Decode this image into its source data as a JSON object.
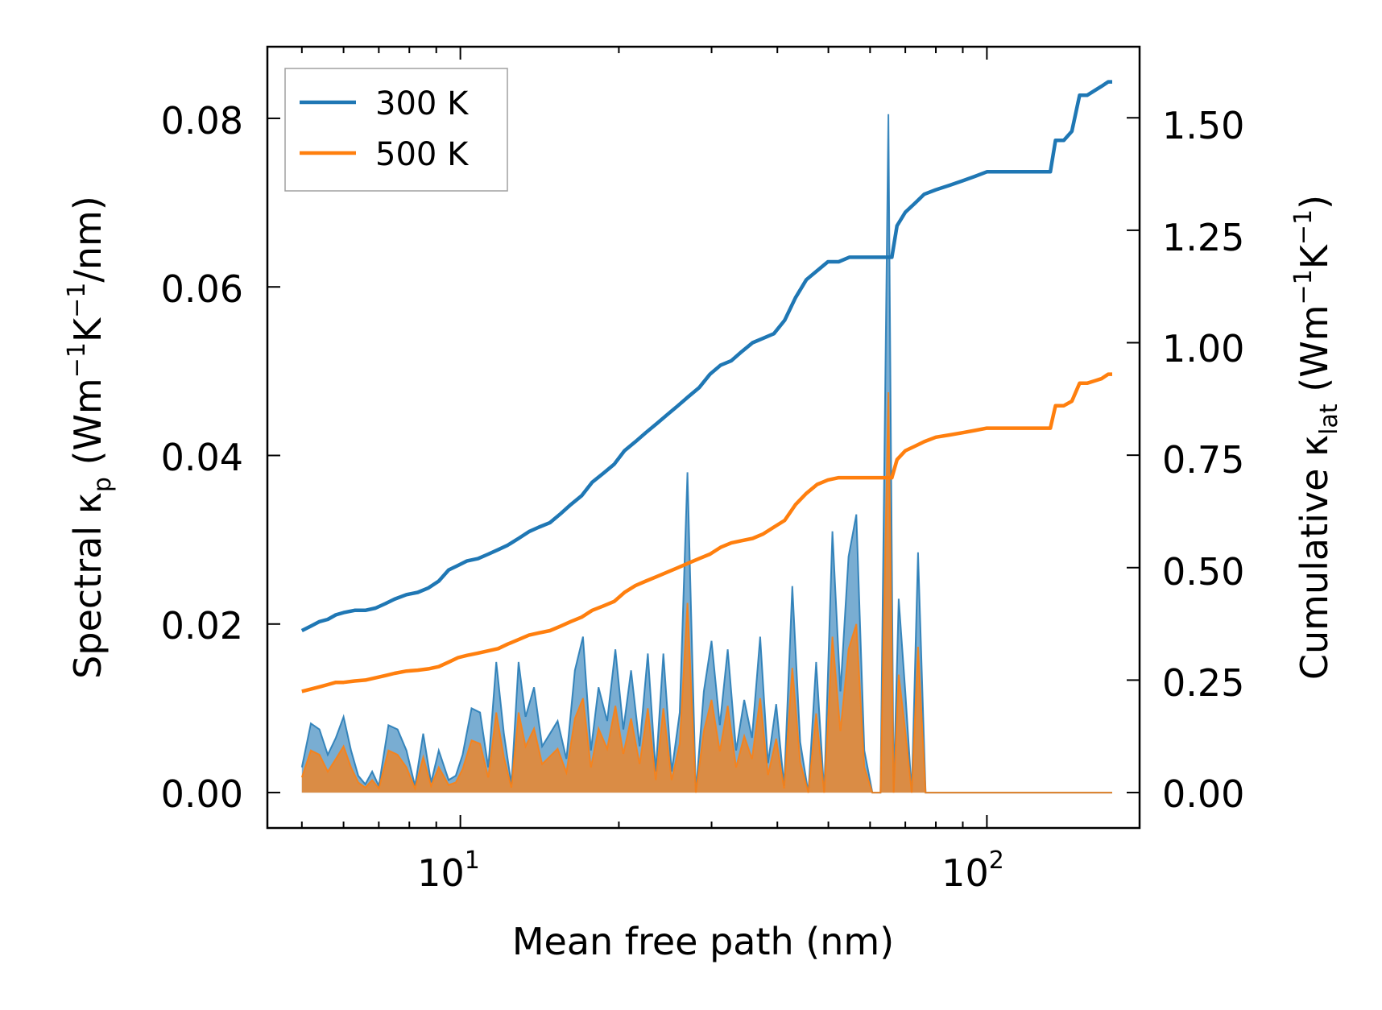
{
  "chart_data": {
    "type": "line",
    "title": "",
    "xlabel": "Mean free path (nm)",
    "xscale": "log",
    "xlim": [
      4.3,
      195
    ],
    "x_ticks": [
      {
        "value": 10,
        "base": "10",
        "exp": "1"
      },
      {
        "value": 100,
        "base": "10",
        "exp": "2"
      }
    ],
    "y_left": {
      "label_main": "Spectral κ",
      "label_sub": "p",
      "label_open": " (Wm",
      "label_sup1": "−1",
      "label_mid": "K",
      "label_sup2": "−1",
      "label_close": "/nm)",
      "ylim": [
        -0.0042,
        0.0885
      ],
      "ticks": [
        "0.00",
        "0.02",
        "0.04",
        "0.06",
        "0.08"
      ],
      "tick_values": [
        0,
        0.02,
        0.04,
        0.06,
        0.08
      ]
    },
    "y_right": {
      "label_main": "Cumulative κ",
      "label_sub": "lat",
      "label_open": " (Wm",
      "label_sup1": "−1",
      "label_mid": "K",
      "label_sup2": "−1",
      "label_close": ")",
      "ylim": [
        -0.0787,
        1.658
      ],
      "ticks": [
        "0.00",
        "0.25",
        "0.50",
        "0.75",
        "1.00",
        "1.25",
        "1.50"
      ],
      "tick_values": [
        0,
        0.25,
        0.5,
        0.75,
        1.0,
        1.25,
        1.5
      ]
    },
    "legend": {
      "placement": "top-left",
      "entries": [
        {
          "label": "300 K",
          "color": "#1f77b4"
        },
        {
          "label": "500 K",
          "color": "#ff7f0e"
        }
      ]
    },
    "series": [
      {
        "name": "300 K",
        "color": "#1f77b4",
        "fill_color": "#1f77b4",
        "spectral": {
          "x": [
            5.0,
            5.2,
            5.4,
            5.6,
            5.8,
            6.0,
            6.2,
            6.4,
            6.6,
            6.8,
            7.0,
            7.3,
            7.6,
            7.9,
            8.2,
            8.5,
            8.8,
            9.1,
            9.5,
            9.8,
            10.1,
            10.5,
            10.9,
            11.3,
            11.7,
            12.1,
            12.5,
            12.9,
            13.3,
            13.8,
            14.3,
            14.8,
            15.3,
            15.9,
            16.5,
            17.1,
            17.7,
            18.3,
            19.0,
            19.7,
            20.4,
            21.1,
            21.9,
            22.7,
            23.5,
            24.3,
            25.2,
            26.1,
            27.0,
            28.0,
            29.0,
            30.0,
            31.1,
            32.2,
            33.4,
            34.6,
            35.8,
            37.1,
            38.4,
            39.8,
            41.2,
            42.7,
            44.2,
            45.8,
            47.4,
            49.1,
            50.9,
            52.7,
            54.6,
            56.5,
            58.5,
            60.6,
            62.8,
            65.0,
            66.5,
            68.0,
            70.0,
            72.0,
            74.0,
            76.5,
            79.0,
            82.0,
            85.0,
            88.0,
            91.0,
            94.0,
            97.0,
            100.0,
            104.0,
            110.0,
            118.0,
            126.0,
            132.0,
            135.0,
            138.0,
            141.0,
            144.0,
            147.0,
            150.0,
            153.0,
            156.0,
            160.0,
            165.0,
            170.0,
            173.0
          ],
          "values": [
            0.003,
            0.0082,
            0.0075,
            0.0045,
            0.0065,
            0.009,
            0.005,
            0.002,
            0.001,
            0.0025,
            0.0008,
            0.008,
            0.0075,
            0.005,
            0.0008,
            0.007,
            0.0012,
            0.005,
            0.0015,
            0.002,
            0.0045,
            0.01,
            0.0095,
            0.003,
            0.0155,
            0.007,
            0.001,
            0.0155,
            0.009,
            0.0125,
            0.0055,
            0.007,
            0.0085,
            0.004,
            0.0145,
            0.0185,
            0.005,
            0.0125,
            0.0085,
            0.017,
            0.0075,
            0.0145,
            0.0055,
            0.0165,
            0.0025,
            0.0165,
            0.0025,
            0.0095,
            0.038,
            0.0,
            0.012,
            0.018,
            0.008,
            0.017,
            0.005,
            0.011,
            0.0065,
            0.0185,
            0.0035,
            0.0105,
            0.0008,
            0.0245,
            0.006,
            0.0,
            0.0155,
            0.0,
            0.031,
            0.012,
            0.028,
            0.033,
            0.005,
            0.0,
            0.0,
            0.0805,
            0.0,
            0.023,
            0.012,
            0.0,
            0.0285,
            0.0,
            0.0,
            0.0,
            0.0,
            0.0,
            0.0,
            0.0,
            0.0,
            0.0,
            0.0,
            0.0,
            0.0,
            0.0,
            0.0,
            0.0,
            0.0,
            0.0,
            0.0,
            0.0,
            0.0,
            0.0,
            0.0,
            0.0,
            0.0,
            0.0,
            0.0
          ]
        },
        "cumulative": {
          "x": [
            5.0,
            5.2,
            5.4,
            5.6,
            5.8,
            6.0,
            6.3,
            6.6,
            6.9,
            7.2,
            7.5,
            7.9,
            8.3,
            8.7,
            9.1,
            9.5,
            9.9,
            10.3,
            10.8,
            11.3,
            11.8,
            12.3,
            12.9,
            13.5,
            14.1,
            14.8,
            15.5,
            16.2,
            17.0,
            17.8,
            18.7,
            19.6,
            20.5,
            21.5,
            22.5,
            23.6,
            24.7,
            25.9,
            27.1,
            28.4,
            29.8,
            31.2,
            32.7,
            34.2,
            35.9,
            37.6,
            39.4,
            41.3,
            43.3,
            45.4,
            47.6,
            49.9,
            52.3,
            54.8,
            57.4,
            60.2,
            63.1,
            66.0,
            67.5,
            70.0,
            73.0,
            76.0,
            80.0,
            85.0,
            90.0,
            95.0,
            100.0,
            110.0,
            120.0,
            132.0,
            135.0,
            140.0,
            145.0,
            150.0,
            155.0,
            160.0,
            165.0,
            170.0,
            173.0
          ],
          "values": [
            0.36,
            0.37,
            0.38,
            0.385,
            0.395,
            0.4,
            0.405,
            0.405,
            0.41,
            0.42,
            0.43,
            0.44,
            0.445,
            0.455,
            0.47,
            0.495,
            0.505,
            0.515,
            0.52,
            0.53,
            0.54,
            0.55,
            0.565,
            0.58,
            0.59,
            0.6,
            0.62,
            0.64,
            0.66,
            0.69,
            0.71,
            0.73,
            0.76,
            0.78,
            0.8,
            0.82,
            0.84,
            0.86,
            0.88,
            0.9,
            0.93,
            0.95,
            0.96,
            0.98,
            1.0,
            1.01,
            1.02,
            1.05,
            1.1,
            1.14,
            1.16,
            1.18,
            1.18,
            1.19,
            1.19,
            1.19,
            1.19,
            1.19,
            1.26,
            1.29,
            1.31,
            1.33,
            1.34,
            1.35,
            1.36,
            1.37,
            1.38,
            1.38,
            1.38,
            1.38,
            1.45,
            1.45,
            1.47,
            1.55,
            1.55,
            1.56,
            1.57,
            1.58,
            1.58
          ]
        }
      },
      {
        "name": "500 K",
        "color": "#ff7f0e",
        "fill_color": "#ff7f0e",
        "spectral": {
          "x": [
            5.0,
            5.2,
            5.4,
            5.6,
            5.8,
            6.0,
            6.2,
            6.4,
            6.6,
            6.8,
            7.0,
            7.3,
            7.6,
            7.9,
            8.2,
            8.5,
            8.8,
            9.1,
            9.5,
            9.8,
            10.1,
            10.5,
            10.9,
            11.3,
            11.7,
            12.1,
            12.5,
            12.9,
            13.3,
            13.8,
            14.3,
            14.8,
            15.3,
            15.9,
            16.5,
            17.1,
            17.7,
            18.3,
            19.0,
            19.7,
            20.4,
            21.1,
            21.9,
            22.7,
            23.5,
            24.3,
            25.2,
            26.1,
            27.0,
            28.0,
            29.0,
            30.0,
            31.1,
            32.2,
            33.4,
            34.6,
            35.8,
            37.1,
            38.4,
            39.8,
            41.2,
            42.7,
            44.2,
            45.8,
            47.4,
            49.1,
            50.9,
            52.7,
            54.6,
            56.5,
            58.5,
            60.6,
            62.8,
            65.0,
            66.5,
            68.0,
            70.0,
            72.0,
            74.0,
            76.5,
            79.0,
            82.0,
            85.0,
            88.0,
            91.0,
            94.0,
            97.0,
            100.0,
            104.0,
            110.0,
            118.0,
            126.0,
            132.0,
            135.0,
            138.0,
            141.0,
            144.0,
            147.0,
            150.0,
            153.0,
            156.0,
            160.0,
            165.0,
            170.0,
            173.0
          ],
          "values": [
            0.0018,
            0.005,
            0.0045,
            0.0025,
            0.004,
            0.0055,
            0.003,
            0.0012,
            0.0006,
            0.0015,
            0.0005,
            0.005,
            0.0045,
            0.003,
            0.0005,
            0.0042,
            0.0008,
            0.003,
            0.0009,
            0.0012,
            0.0028,
            0.0062,
            0.0058,
            0.0018,
            0.0095,
            0.0042,
            0.0006,
            0.0095,
            0.0055,
            0.0076,
            0.0034,
            0.0043,
            0.0052,
            0.0024,
            0.0088,
            0.0112,
            0.003,
            0.0076,
            0.0052,
            0.0103,
            0.0046,
            0.0088,
            0.0034,
            0.01,
            0.0015,
            0.01,
            0.0015,
            0.0058,
            0.0225,
            0.0,
            0.0073,
            0.011,
            0.0049,
            0.0103,
            0.003,
            0.0067,
            0.004,
            0.0112,
            0.0021,
            0.0064,
            0.0005,
            0.0148,
            0.0036,
            0.0,
            0.0094,
            0.0,
            0.0185,
            0.0073,
            0.017,
            0.02,
            0.003,
            0.0,
            0.0,
            0.0475,
            0.0,
            0.014,
            0.0073,
            0.0,
            0.0173,
            0.0,
            0.0,
            0.0,
            0.0,
            0.0,
            0.0,
            0.0,
            0.0,
            0.0,
            0.0,
            0.0,
            0.0,
            0.0,
            0.0,
            0.0,
            0.0,
            0.0,
            0.0,
            0.0,
            0.0,
            0.0,
            0.0,
            0.0,
            0.0,
            0.0,
            0.0
          ]
        },
        "cumulative": {
          "x": [
            5.0,
            5.2,
            5.4,
            5.6,
            5.8,
            6.0,
            6.3,
            6.6,
            6.9,
            7.2,
            7.5,
            7.9,
            8.3,
            8.7,
            9.1,
            9.5,
            9.9,
            10.3,
            10.8,
            11.3,
            11.8,
            12.3,
            12.9,
            13.5,
            14.1,
            14.8,
            15.5,
            16.2,
            17.0,
            17.8,
            18.7,
            19.6,
            20.5,
            21.5,
            22.5,
            23.6,
            24.7,
            25.9,
            27.1,
            28.4,
            29.8,
            31.2,
            32.7,
            34.2,
            35.9,
            37.6,
            39.4,
            41.3,
            43.3,
            45.4,
            47.6,
            49.9,
            52.3,
            54.8,
            57.4,
            60.2,
            63.1,
            66.0,
            67.5,
            70.0,
            73.0,
            76.0,
            80.0,
            85.0,
            90.0,
            95.0,
            100.0,
            110.0,
            120.0,
            132.0,
            135.0,
            140.0,
            145.0,
            150.0,
            155.0,
            160.0,
            165.0,
            170.0,
            173.0
          ],
          "values": [
            0.225,
            0.23,
            0.235,
            0.24,
            0.245,
            0.245,
            0.248,
            0.25,
            0.255,
            0.26,
            0.265,
            0.27,
            0.272,
            0.275,
            0.28,
            0.29,
            0.3,
            0.305,
            0.31,
            0.315,
            0.32,
            0.33,
            0.34,
            0.35,
            0.355,
            0.36,
            0.37,
            0.38,
            0.39,
            0.405,
            0.415,
            0.425,
            0.445,
            0.46,
            0.47,
            0.48,
            0.49,
            0.5,
            0.51,
            0.52,
            0.53,
            0.545,
            0.555,
            0.56,
            0.565,
            0.575,
            0.59,
            0.605,
            0.64,
            0.665,
            0.685,
            0.695,
            0.7,
            0.7,
            0.7,
            0.7,
            0.7,
            0.7,
            0.74,
            0.76,
            0.77,
            0.78,
            0.79,
            0.795,
            0.8,
            0.805,
            0.81,
            0.81,
            0.81,
            0.81,
            0.86,
            0.86,
            0.87,
            0.91,
            0.91,
            0.915,
            0.92,
            0.93,
            0.93
          ]
        }
      }
    ]
  }
}
